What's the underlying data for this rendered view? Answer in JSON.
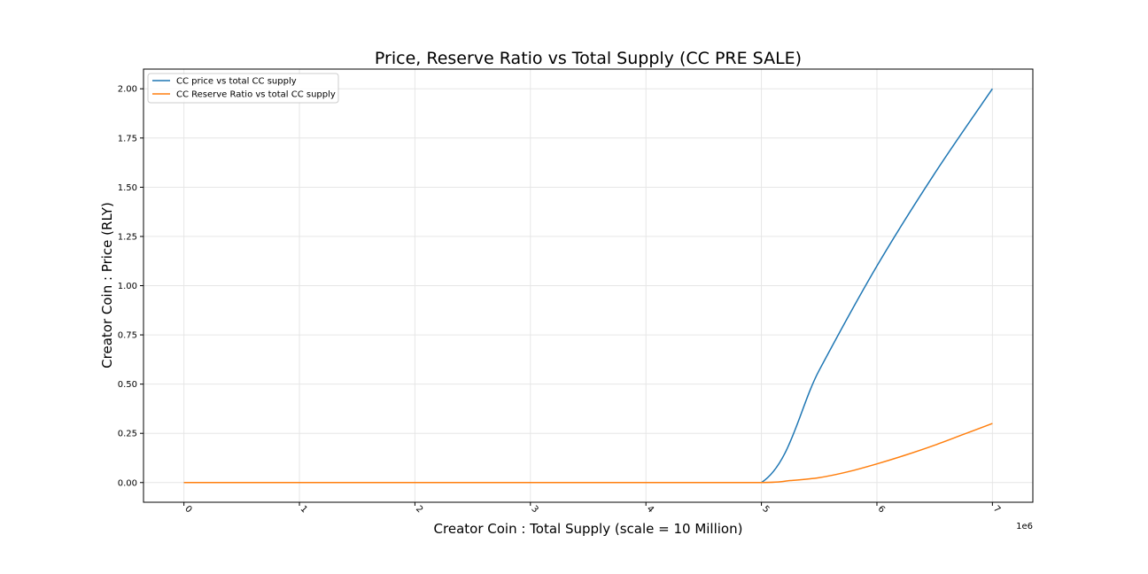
{
  "chart_data": {
    "type": "line",
    "title": "Price, Reserve Ratio vs Total Supply (CC PRE SALE)",
    "xlabel": "Creator Coin : Total Supply (scale = 10 Million)",
    "ylabel": "Creator Coin : Price (RLY)",
    "x_offset_label": "1e6",
    "xlim": [
      -0.35,
      7.35
    ],
    "ylim": [
      -0.1,
      2.1
    ],
    "x_ticks": [
      0,
      1,
      2,
      3,
      4,
      5,
      6,
      7
    ],
    "x_tick_labels": [
      "0",
      "1",
      "2",
      "3",
      "4",
      "5",
      "6",
      "7"
    ],
    "y_ticks": [
      0,
      0.25,
      0.5,
      0.75,
      1.0,
      1.25,
      1.5,
      1.75,
      2.0
    ],
    "y_tick_labels": [
      "0.00",
      "0.25",
      "0.50",
      "0.75",
      "1.00",
      "1.25",
      "1.50",
      "1.75",
      "2.00"
    ],
    "grid": true,
    "legend_position": "top-left",
    "series": [
      {
        "name": "CC price vs total CC supply",
        "color": "#1f77b4",
        "x": [
          0,
          1,
          2,
          3,
          4,
          5,
          5.5,
          6,
          6.5,
          7
        ],
        "y": [
          0,
          0,
          0,
          0,
          0,
          0,
          0.57,
          1.1,
          1.57,
          2.0
        ]
      },
      {
        "name": "CC Reserve Ratio vs total CC supply",
        "color": "#ff7f0e",
        "x": [
          0,
          1,
          2,
          3,
          4,
          5,
          5.25,
          5.5,
          5.75,
          6,
          6.25,
          6.5,
          6.75,
          7
        ],
        "y": [
          0,
          0,
          0,
          0,
          0,
          0,
          0.01,
          0.025,
          0.055,
          0.095,
          0.14,
          0.19,
          0.245,
          0.3
        ]
      }
    ]
  }
}
